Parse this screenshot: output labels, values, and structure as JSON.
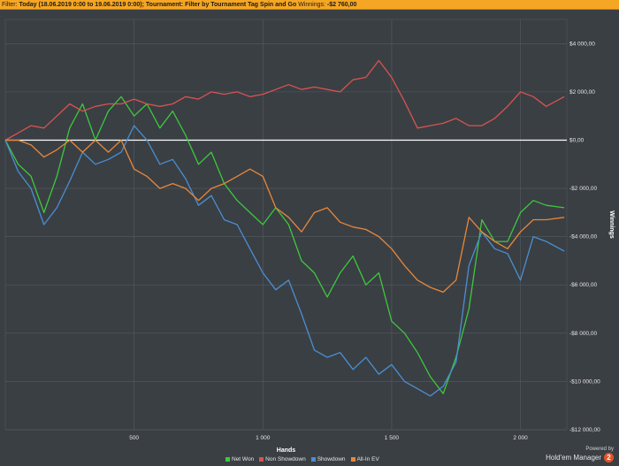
{
  "filter_bar": {
    "filter_label": "Filter:",
    "filter_value": "Today (18.06.2019 0:00 to 19.06.2019 0:00); Tournament: Filter by Tournament Tag  Spin and Go",
    "winnings_label": "Winnings:",
    "winnings_value": "-$2 760,00"
  },
  "brand": {
    "powered_by": "Powered by",
    "name": "Hold'em Manager",
    "badge": "2"
  },
  "colors": {
    "background": "#3a3f44",
    "grid": "#555b61",
    "zero_line": "#ffffff",
    "net_won": "#3cc93c",
    "non_showdown": "#d9534f",
    "showdown": "#4a8fd1",
    "all_in_ev": "#e8873a"
  },
  "chart_data": {
    "type": "line",
    "xlabel": "Hands",
    "ylabel": "Winnings",
    "xlim": [
      0,
      2180
    ],
    "ylim": [
      -12000,
      5000
    ],
    "x_ticks": [
      500,
      1000,
      1500,
      2000
    ],
    "x_tick_labels": [
      "500",
      "1 000",
      "1 500",
      "2 000"
    ],
    "y_ticks": [
      4000,
      2000,
      0,
      -2000,
      -4000,
      -6000,
      -8000,
      -10000,
      -12000
    ],
    "y_tick_labels": [
      "$4 000,00",
      "$2 000,00",
      "$0,00",
      "-$2 000,00",
      "-$4 000,00",
      "-$6 000,00",
      "-$8 000,00",
      "-$10 000,00",
      "-$12 000,00"
    ],
    "grid": true,
    "legend_position": "bottom",
    "x": [
      0,
      50,
      100,
      150,
      200,
      250,
      300,
      350,
      400,
      450,
      500,
      550,
      600,
      650,
      700,
      750,
      800,
      850,
      900,
      950,
      1000,
      1050,
      1100,
      1150,
      1200,
      1250,
      1300,
      1350,
      1400,
      1450,
      1500,
      1550,
      1600,
      1650,
      1700,
      1750,
      1800,
      1850,
      1900,
      1950,
      2000,
      2050,
      2100,
      2170
    ],
    "series": [
      {
        "name": "Net Won",
        "color_key": "net_won",
        "values": [
          0,
          -1000,
          -1500,
          -3000,
          -1500,
          500,
          1500,
          0,
          1200,
          1800,
          1000,
          1500,
          500,
          1200,
          200,
          -1000,
          -500,
          -1800,
          -2500,
          -3000,
          -3500,
          -2800,
          -3500,
          -5000,
          -5500,
          -6500,
          -5500,
          -4800,
          -6000,
          -5500,
          -7500,
          -8000,
          -8800,
          -9800,
          -10500,
          -9000,
          -7000,
          -3300,
          -4200,
          -4200,
          -3000,
          -2500,
          -2700,
          -2800
        ]
      },
      {
        "name": "Non Showdown",
        "color_key": "non_showdown",
        "values": [
          0,
          300,
          600,
          500,
          1000,
          1500,
          1200,
          1400,
          1500,
          1500,
          1700,
          1500,
          1400,
          1500,
          1800,
          1700,
          2000,
          1900,
          2000,
          1800,
          1900,
          2100,
          2300,
          2100,
          2200,
          2100,
          2000,
          2500,
          2600,
          3300,
          2600,
          1600,
          500,
          600,
          700,
          900,
          600,
          600,
          900,
          1400,
          2000,
          1800,
          1400,
          1800
        ]
      },
      {
        "name": "Showdown",
        "color_key": "showdown",
        "values": [
          0,
          -1300,
          -2000,
          -3500,
          -2800,
          -1700,
          -500,
          -1000,
          -800,
          -500,
          600,
          0,
          -1000,
          -800,
          -1600,
          -2700,
          -2300,
          -3300,
          -3500,
          -4500,
          -5500,
          -6200,
          -5800,
          -7200,
          -8700,
          -9000,
          -8800,
          -9500,
          -9000,
          -9700,
          -9300,
          -10000,
          -10300,
          -10600,
          -10200,
          -9200,
          -5200,
          -3800,
          -4500,
          -4700,
          -5800,
          -4000,
          -4200,
          -4600
        ]
      },
      {
        "name": "All-In EV",
        "color_key": "all_in_ev",
        "values": [
          0,
          0,
          -200,
          -700,
          -400,
          0,
          -500,
          0,
          -500,
          0,
          -1200,
          -1500,
          -2000,
          -1800,
          -2000,
          -2500,
          -2000,
          -1800,
          -1500,
          -1200,
          -1500,
          -2800,
          -3200,
          -3800,
          -3000,
          -2800,
          -3400,
          -3600,
          -3700,
          -4000,
          -4500,
          -5200,
          -5800,
          -6100,
          -6300,
          -5800,
          -3200,
          -3800,
          -4200,
          -4500,
          -3800,
          -3300,
          -3300,
          -3200
        ]
      }
    ]
  }
}
